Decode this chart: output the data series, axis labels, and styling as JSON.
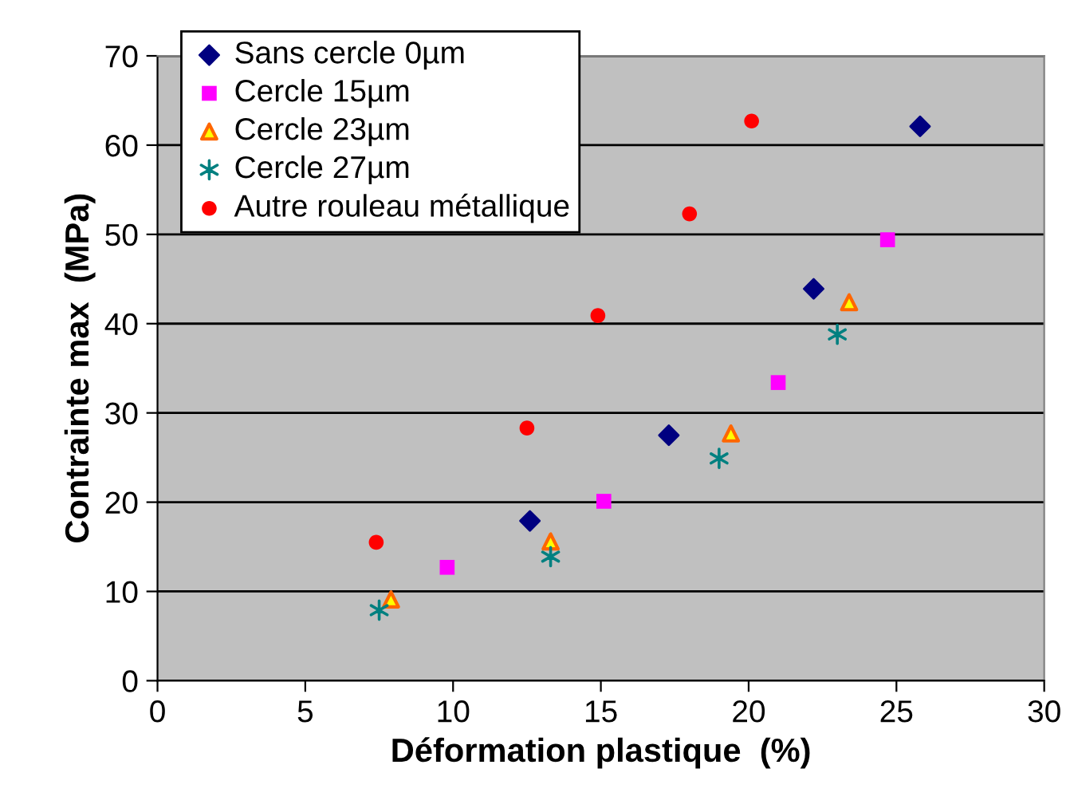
{
  "chart_data": {
    "type": "scatter",
    "xlabel": "Déformation plastique  (%)",
    "ylabel": "Contrainte max  (MPa)",
    "xlim": [
      0,
      30
    ],
    "xticks": [
      0,
      5,
      10,
      15,
      20,
      25,
      30
    ],
    "ylim": [
      0,
      70
    ],
    "yticks": [
      0,
      10,
      20,
      30,
      40,
      50,
      60,
      70
    ],
    "grid": "y",
    "legend": "top left",
    "series": [
      {
        "name": "Sans cercle 0µm",
        "color": "#000080",
        "marker": "diamond",
        "x": [
          12.6,
          17.3,
          22.2,
          25.8
        ],
        "values": [
          17.9,
          27.5,
          43.9,
          62.1
        ]
      },
      {
        "name": "Cercle 15µm",
        "color": "#ff00ff",
        "marker": "square",
        "x": [
          9.8,
          15.1,
          21.0,
          24.7
        ],
        "values": [
          12.7,
          20.1,
          33.4,
          49.4
        ]
      },
      {
        "name": "Cercle 23µm",
        "color": "#ff6600",
        "marker": "triangle",
        "x": [
          7.9,
          13.3,
          19.4,
          23.4
        ],
        "values": [
          9.1,
          15.6,
          27.7,
          42.4
        ]
      },
      {
        "name": "Cercle 27µm",
        "color": "#008080",
        "marker": "cross",
        "x": [
          7.5,
          13.3,
          19.0,
          23.0
        ],
        "values": [
          7.9,
          13.9,
          24.9,
          38.8
        ]
      },
      {
        "name": "Autre rouleau métallique",
        "color": "#ff0000",
        "marker": "circle",
        "x": [
          7.4,
          12.5,
          14.9,
          18.0,
          20.1
        ],
        "values": [
          15.5,
          28.3,
          40.9,
          52.3,
          62.7
        ]
      }
    ]
  }
}
